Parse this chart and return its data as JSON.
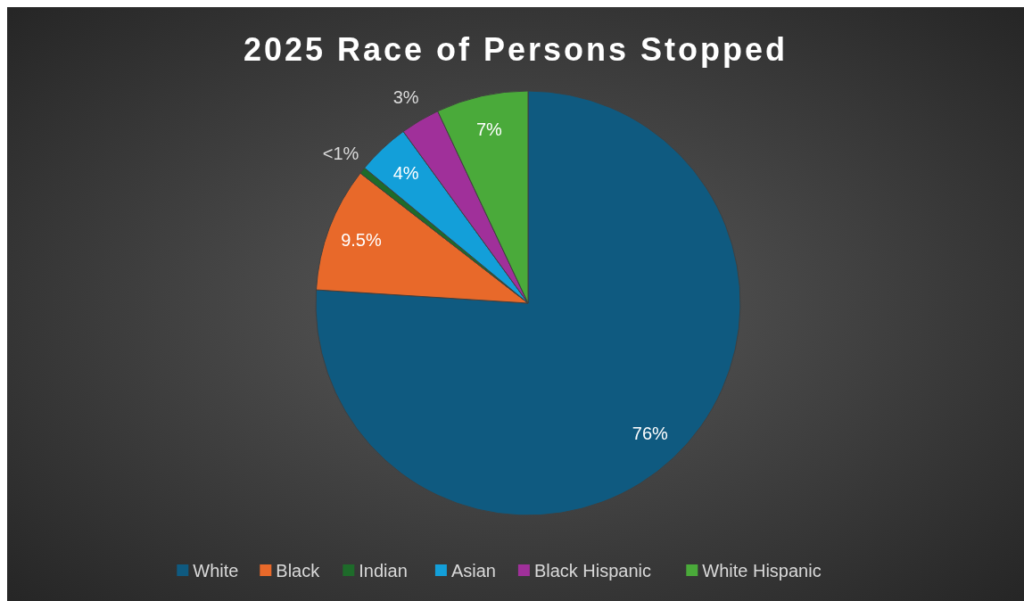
{
  "chart_data": {
    "type": "pie",
    "title": "2025 Race of Persons Stopped",
    "categories": [
      "White",
      "Black",
      "Indian",
      "Asian",
      "Black Hispanic",
      "White Hispanic"
    ],
    "values": [
      76,
      9.5,
      0.5,
      4,
      3,
      7
    ],
    "value_labels": [
      "76%",
      "9.5%",
      "<1%",
      "4%",
      "3%",
      "7%"
    ],
    "colors": [
      "#0f5a80",
      "#e8692a",
      "#1e6b2a",
      "#139fd9",
      "#a0309a",
      "#4aaa3a"
    ],
    "legend": "bottom"
  }
}
